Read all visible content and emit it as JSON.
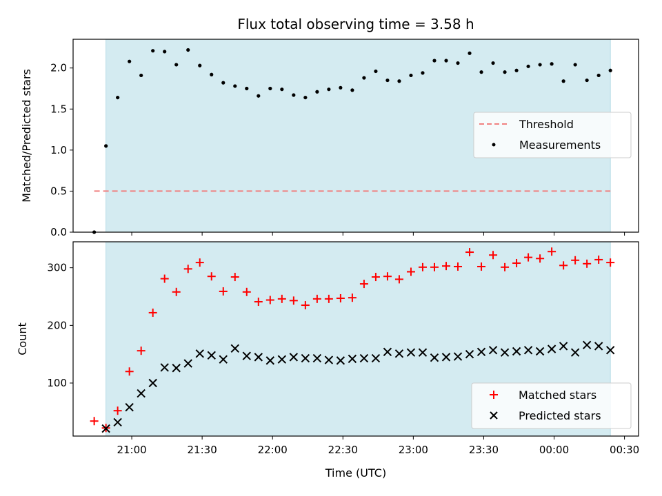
{
  "chart_data": {
    "title": "Flux total observing time = 3.58 h",
    "xlabel": "Time (UTC)",
    "x_tick_labels": [
      "21:00",
      "21:30",
      "22:00",
      "22:30",
      "23:00",
      "23:30",
      "00:00",
      "00:30"
    ],
    "shaded_interval": {
      "start": "20:49",
      "end": "00:24",
      "color": "#d4ebf1"
    },
    "panels": [
      {
        "type": "line+scatter",
        "ylabel": "Matched/Predicted stars",
        "ylim": [
          0,
          2.35
        ],
        "y_ticks": [
          "0.0",
          "0.5",
          "1.0",
          "1.5",
          "2.0"
        ],
        "legend_position": "center-right",
        "series": [
          {
            "name": "Threshold",
            "style": "dashed-line",
            "color": "#f08080",
            "x_start": "20:44",
            "x_end": "00:24",
            "value": 0.5
          },
          {
            "name": "Measurements",
            "style": "dot",
            "color": "#000000",
            "x": [
              "20:44",
              "20:49",
              "20:54",
              "20:59",
              "21:04",
              "21:09",
              "21:14",
              "21:19",
              "21:24",
              "21:29",
              "21:34",
              "21:39",
              "21:44",
              "21:49",
              "21:54",
              "21:59",
              "22:04",
              "22:09",
              "22:14",
              "22:19",
              "22:24",
              "22:29",
              "22:34",
              "22:39",
              "22:44",
              "22:49",
              "22:54",
              "22:59",
              "23:04",
              "23:09",
              "23:14",
              "23:19",
              "23:24",
              "23:29",
              "23:34",
              "23:39",
              "23:44",
              "23:49",
              "23:54",
              "23:59",
              "00:04",
              "00:09",
              "00:14",
              "00:19",
              "00:24"
            ],
            "values": [
              0.0,
              1.05,
              1.64,
              2.08,
              1.91,
              2.21,
              2.2,
              2.04,
              2.22,
              2.03,
              1.92,
              1.82,
              1.78,
              1.75,
              1.66,
              1.75,
              1.74,
              1.67,
              1.64,
              1.71,
              1.74,
              1.76,
              1.73,
              1.88,
              1.96,
              1.85,
              1.84,
              1.91,
              1.94,
              2.09,
              2.09,
              2.06,
              2.18,
              1.95,
              2.06,
              1.95,
              1.97,
              2.02,
              2.04,
              2.05,
              1.84,
              2.04,
              1.85,
              1.91,
              1.97
            ]
          }
        ]
      },
      {
        "type": "scatter",
        "ylabel": "Count",
        "ylim": [
          8,
          345
        ],
        "y_ticks": [
          "100",
          "200",
          "300"
        ],
        "legend_position": "lower-right",
        "series": [
          {
            "name": "Matched stars",
            "marker": "+",
            "color": "#ff0000",
            "x": [
              "20:44",
              "20:49",
              "20:54",
              "20:59",
              "21:04",
              "21:09",
              "21:14",
              "21:19",
              "21:24",
              "21:29",
              "21:34",
              "21:39",
              "21:44",
              "21:49",
              "21:54",
              "21:59",
              "22:04",
              "22:09",
              "22:14",
              "22:19",
              "22:24",
              "22:29",
              "22:34",
              "22:39",
              "22:44",
              "22:49",
              "22:54",
              "22:59",
              "23:04",
              "23:09",
              "23:14",
              "23:19",
              "23:24",
              "23:29",
              "23:34",
              "23:39",
              "23:44",
              "23:49",
              "23:54",
              "23:59",
              "00:04",
              "00:09",
              "00:14",
              "00:19",
              "00:24"
            ],
            "values": [
              34,
              22,
              52,
              120,
              156,
              222,
              281,
              258,
              298,
              309,
              285,
              259,
              284,
              258,
              241,
              244,
              246,
              243,
              235,
              246,
              246,
              247,
              248,
              272,
              284,
              285,
              280,
              293,
              301,
              301,
              303,
              302,
              327,
              302,
              322,
              301,
              308,
              318,
              316,
              328,
              304,
              313,
              307,
              314,
              309
            ]
          },
          {
            "name": "Predicted stars",
            "marker": "x",
            "color": "#000000",
            "x": [
              "20:49",
              "20:54",
              "20:59",
              "21:04",
              "21:09",
              "21:14",
              "21:19",
              "21:24",
              "21:29",
              "21:34",
              "21:39",
              "21:44",
              "21:49",
              "21:54",
              "21:59",
              "22:04",
              "22:09",
              "22:14",
              "22:19",
              "22:24",
              "22:29",
              "22:34",
              "22:39",
              "22:44",
              "22:49",
              "22:54",
              "22:59",
              "23:04",
              "23:09",
              "23:14",
              "23:19",
              "23:24",
              "23:29",
              "23:34",
              "23:39",
              "23:44",
              "23:49",
              "23:54",
              "23:59",
              "00:04",
              "00:09",
              "00:14",
              "00:19",
              "00:24"
            ],
            "values": [
              21,
              32,
              58,
              82,
              100,
              127,
              126,
              134,
              151,
              148,
              141,
              160,
              147,
              145,
              139,
              141,
              145,
              143,
              143,
              140,
              139,
              142,
              143,
              143,
              154,
              151,
              153,
              153,
              144,
              145,
              146,
              150,
              154,
              157,
              153,
              155,
              157,
              155,
              159,
              164,
              153,
              166,
              164,
              157
            ]
          }
        ]
      }
    ]
  }
}
